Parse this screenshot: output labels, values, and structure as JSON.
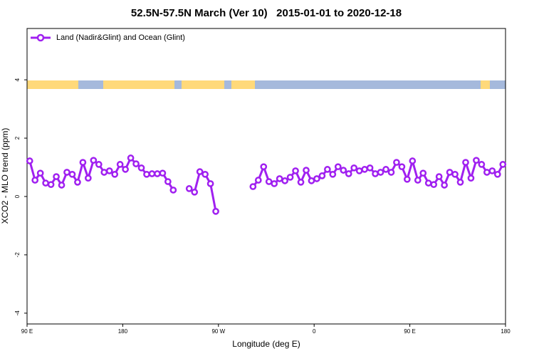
{
  "chart_data": {
    "type": "line",
    "title": "52.5N-57.5N March (Ver 10)   2015-01-01 to 2020-12-18",
    "x_label": "Longitude (deg E)",
    "y_label": "XCO2 - MLO trend (ppm)",
    "x": [
      92.5,
      97.5,
      102.5,
      107.5,
      112.5,
      117.5,
      122.5,
      127.5,
      132.5,
      137.5,
      142.5,
      147.5,
      152.5,
      157.5,
      162.5,
      167.5,
      172.5,
      177.5,
      182.5,
      187.5,
      192.5,
      197.5,
      202.5,
      207.5,
      212.5,
      217.5,
      222.5,
      227.5,
      232.5,
      237.5,
      242.5,
      247.5,
      252.5,
      257.5,
      262.5,
      267.5,
      272.5,
      277.5,
      282.5,
      287.5,
      292.5,
      297.5,
      302.5,
      307.5,
      312.5,
      317.5,
      322.5,
      327.5,
      332.5,
      337.5,
      342.5,
      347.5,
      352.5,
      357.5,
      362.5,
      367.5,
      372.5,
      377.5,
      382.5,
      387.5,
      392.5,
      397.5,
      402.5,
      407.5,
      412.5,
      417.5,
      422.5,
      427.5,
      432.5,
      437.5,
      442.5,
      447.5,
      452.5,
      457.5,
      462.5,
      467.5,
      472.5,
      477.5,
      482.5,
      487.5,
      492.5,
      497.5,
      502.5,
      507.5,
      512.5,
      517.5,
      522.5,
      527.5,
      532.5,
      537.5
    ],
    "series": [
      {
        "name": "Land (Nadir&Glint) and Ocean (Glint)",
        "color": "#a020f0",
        "values": [
          1.22,
          0.56,
          0.8,
          0.46,
          0.41,
          0.68,
          0.39,
          0.83,
          0.76,
          0.49,
          1.17,
          0.63,
          1.24,
          1.1,
          0.83,
          0.88,
          0.76,
          1.1,
          0.93,
          1.32,
          1.12,
          0.98,
          0.76,
          0.78,
          0.78,
          0.8,
          0.51,
          0.22,
          null,
          null,
          0.27,
          0.15,
          0.85,
          0.76,
          0.44,
          -0.51,
          null,
          null,
          null,
          null,
          null,
          null,
          0.34,
          0.56,
          1.02,
          0.51,
          0.44,
          0.61,
          0.54,
          0.66,
          0.88,
          0.49,
          0.9,
          0.54,
          0.61,
          0.71,
          0.93,
          0.76,
          1.02,
          0.9,
          0.78,
          0.98,
          0.88,
          0.93,
          0.98,
          0.78,
          0.83,
          0.93,
          0.83,
          1.17,
          1.02,
          0.59,
          1.22,
          0.56,
          0.8,
          0.46,
          0.41,
          0.68,
          0.39,
          0.83,
          0.76,
          0.49,
          1.17,
          0.63,
          1.24,
          1.1,
          0.83,
          0.88,
          0.76,
          1.1
        ]
      }
    ],
    "xlim": [
      90,
      540
    ],
    "xticks": [
      {
        "value": 90,
        "label": "90 E"
      },
      180,
      {
        "value": 270,
        "label": "90 W"
      },
      {
        "value": 360,
        "label": "0"
      },
      {
        "value": 450,
        "label": "90 E"
      },
      {
        "value": 540,
        "label": "180"
      }
    ],
    "ylim": [
      -4.37,
      5.76
    ],
    "yticks": [
      -4,
      -2,
      0,
      2,
      4
    ],
    "legend": "top-left"
  }
}
